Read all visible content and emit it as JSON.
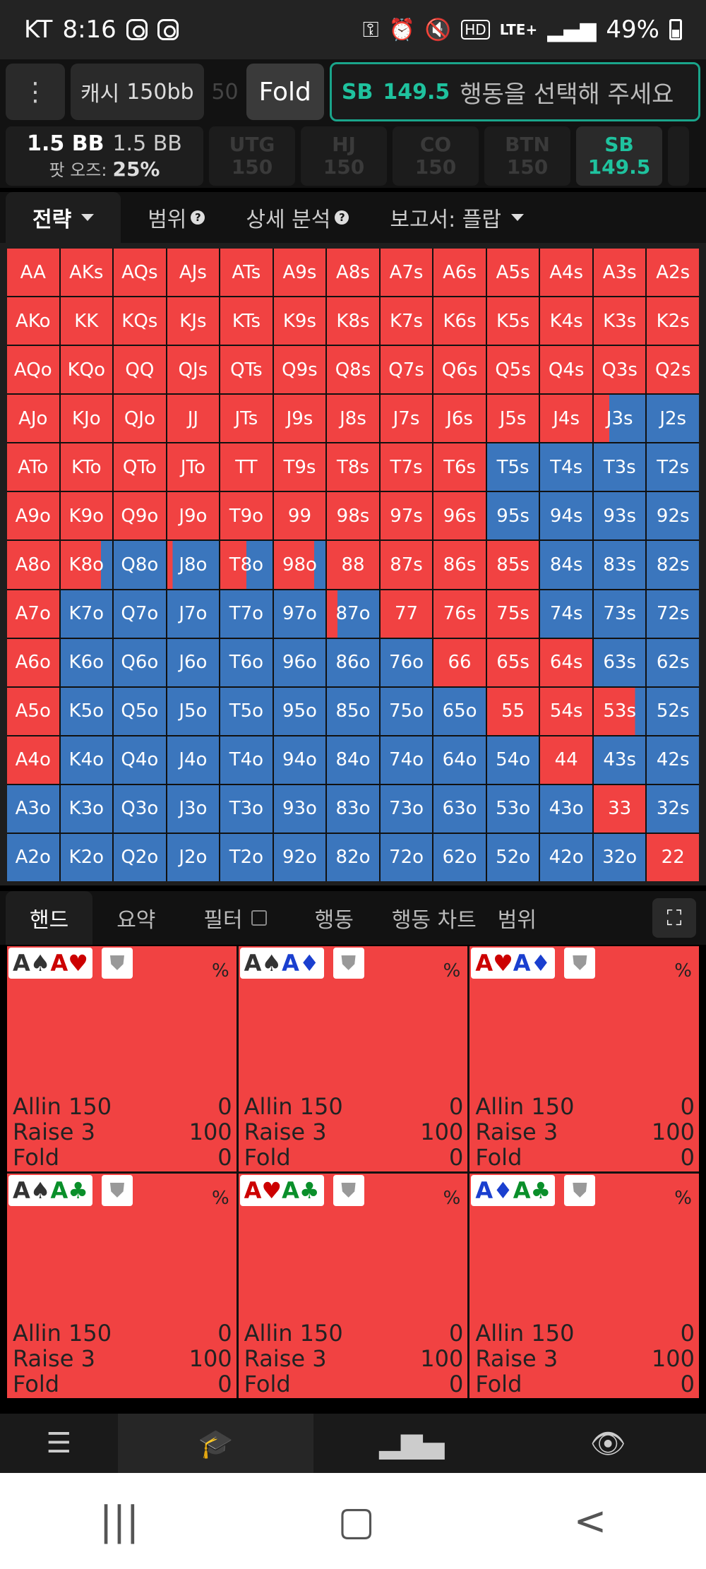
{
  "statusbar": {
    "carrier": "KT",
    "time": "8:16",
    "network": "LTE+",
    "battery": "49%"
  },
  "topbar": {
    "menu_icon": "⋮",
    "cash_label": "캐시",
    "cash_value": "150bb",
    "ghost_value": "50",
    "fold_label": "Fold",
    "prompt_position": "SB",
    "prompt_stack": "149.5",
    "prompt_message": "행동을 선택해 주세요"
  },
  "pot": {
    "bb_main": "1.5 BB",
    "bb_second": "1.5 BB",
    "odds_label": "팟 오즈:",
    "odds_value": "25%"
  },
  "seats": [
    {
      "name": "UTG",
      "stack": "150",
      "active": false
    },
    {
      "name": "HJ",
      "stack": "150",
      "active": false
    },
    {
      "name": "CO",
      "stack": "150",
      "active": false
    },
    {
      "name": "BTN",
      "stack": "150",
      "active": false
    },
    {
      "name": "SB",
      "stack": "149.5",
      "active": true
    }
  ],
  "tabs": {
    "strategy": "전략",
    "range": "범위",
    "detail": "상세 분석",
    "report": "보고서: 플랍"
  },
  "colors": {
    "raise": "#f14242",
    "fold": "#3b76bd"
  },
  "grid": {
    "ranks": [
      "A",
      "K",
      "Q",
      "J",
      "T",
      "9",
      "8",
      "7",
      "6",
      "5",
      "4",
      "3",
      "2"
    ],
    "red_fraction": [
      [
        1,
        1,
        1,
        1,
        1,
        1,
        1,
        1,
        1,
        1,
        1,
        1,
        1
      ],
      [
        1,
        1,
        1,
        1,
        1,
        1,
        1,
        1,
        1,
        1,
        1,
        1,
        1
      ],
      [
        1,
        1,
        1,
        1,
        1,
        1,
        1,
        1,
        1,
        1,
        1,
        1,
        1
      ],
      [
        1,
        1,
        1,
        1,
        1,
        1,
        1,
        1,
        1,
        1,
        1,
        0.3,
        0
      ],
      [
        1,
        1,
        1,
        1,
        1,
        1,
        1,
        1,
        1,
        0,
        0,
        0,
        0
      ],
      [
        1,
        1,
        1,
        1,
        1,
        1,
        1,
        1,
        1,
        0,
        0,
        0,
        0
      ],
      [
        1,
        0.78,
        0,
        0.1,
        0.5,
        0.78,
        1,
        1,
        1,
        1,
        0,
        0,
        0
      ],
      [
        1,
        0,
        0,
        0,
        0,
        0,
        0.2,
        1,
        1,
        1,
        0,
        0,
        0
      ],
      [
        1,
        0,
        0,
        0,
        0,
        0,
        0,
        0,
        1,
        1,
        1,
        0,
        0
      ],
      [
        1,
        0,
        0,
        0,
        0,
        0,
        0,
        0,
        0,
        1,
        1,
        0.8,
        0
      ],
      [
        1,
        0,
        0,
        0,
        0,
        0,
        0,
        0,
        0,
        0,
        1,
        0,
        0
      ],
      [
        0,
        0,
        0,
        0,
        0,
        0,
        0,
        0,
        0,
        0,
        0,
        1,
        0
      ],
      [
        0,
        0,
        0,
        0,
        0,
        0,
        0,
        0,
        0,
        0,
        0,
        0,
        1
      ]
    ]
  },
  "bottom_tabs": {
    "hands": "핸드",
    "summary": "요약",
    "filter": "필터",
    "action": "행동",
    "action_chart": "행동 차트",
    "range_cut": "범위"
  },
  "hands": [
    {
      "c1": "A",
      "s1": "♠",
      "col1": "#333",
      "c2": "A",
      "s2": "♥",
      "col2": "#c00",
      "pct": "%",
      "actions": [
        {
          "name": "Allin 150",
          "value": "0"
        },
        {
          "name": "Raise 3",
          "value": "100"
        },
        {
          "name": "Fold",
          "value": "0"
        }
      ]
    },
    {
      "c1": "A",
      "s1": "♠",
      "col1": "#333",
      "c2": "A",
      "s2": "♦",
      "col2": "#1a3fcf",
      "pct": "%",
      "actions": [
        {
          "name": "Allin 150",
          "value": "0"
        },
        {
          "name": "Raise 3",
          "value": "100"
        },
        {
          "name": "Fold",
          "value": "0"
        }
      ]
    },
    {
      "c1": "A",
      "s1": "♥",
      "col1": "#c00",
      "c2": "A",
      "s2": "♦",
      "col2": "#1a3fcf",
      "pct": "%",
      "actions": [
        {
          "name": "Allin 150",
          "value": "0"
        },
        {
          "name": "Raise 3",
          "value": "100"
        },
        {
          "name": "Fold",
          "value": "0"
        }
      ]
    },
    {
      "c1": "A",
      "s1": "♠",
      "col1": "#333",
      "c2": "A",
      "s2": "♣",
      "col2": "#0a8f2a",
      "pct": "%",
      "actions": [
        {
          "name": "Allin 150",
          "value": "0"
        },
        {
          "name": "Raise 3",
          "value": "100"
        },
        {
          "name": "Fold",
          "value": "0"
        }
      ]
    },
    {
      "c1": "A",
      "s1": "♥",
      "col1": "#c00",
      "c2": "A",
      "s2": "♣",
      "col2": "#0a8f2a",
      "pct": "%",
      "actions": [
        {
          "name": "Allin 150",
          "value": "0"
        },
        {
          "name": "Raise 3",
          "value": "100"
        },
        {
          "name": "Fold",
          "value": "0"
        }
      ]
    },
    {
      "c1": "A",
      "s1": "♦",
      "col1": "#1a3fcf",
      "c2": "A",
      "s2": "♣",
      "col2": "#0a8f2a",
      "pct": "%",
      "actions": [
        {
          "name": "Allin 150",
          "value": "0"
        },
        {
          "name": "Raise 3",
          "value": "100"
        },
        {
          "name": "Fold",
          "value": "0"
        }
      ]
    }
  ]
}
